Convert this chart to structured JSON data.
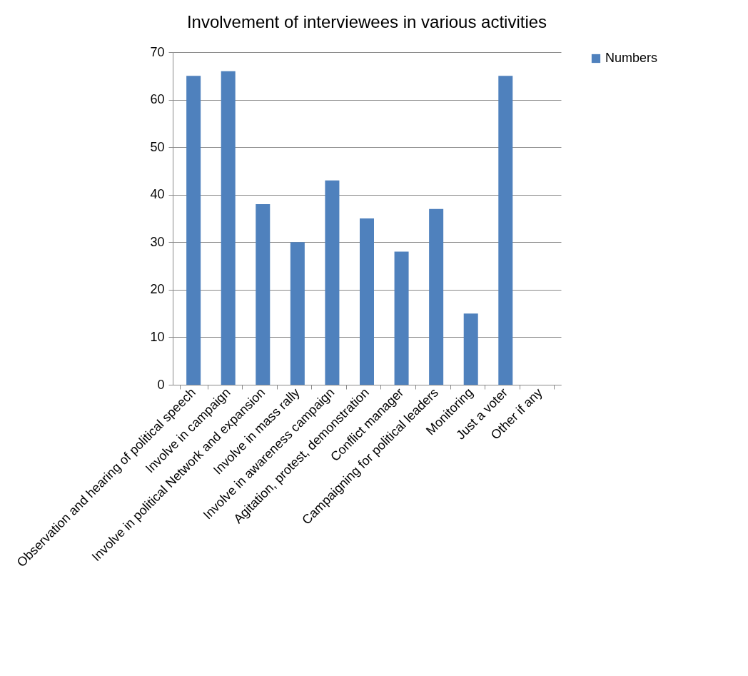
{
  "chart_data": {
    "type": "bar",
    "title": "Involvement of interviewees in various activities",
    "categories": [
      "Observation and hearing of political speech",
      "Involve in campaign",
      "Involve in political Network and expansion",
      "Involve in mass rally",
      "Involve in awareness campaign",
      "Agitation, protest, demonstration",
      "Conflict manager",
      "Campaigning for political leaders",
      "Monitoring",
      "Just a voter",
      "Other if any"
    ],
    "series": [
      {
        "name": "Numbers",
        "color": "#4f81bd",
        "values": [
          65,
          66,
          38,
          30,
          43,
          35,
          28,
          37,
          15,
          65,
          null
        ]
      }
    ],
    "ylim": [
      0,
      70
    ],
    "yticks": [
      0,
      10,
      20,
      30,
      40,
      50,
      60,
      70
    ],
    "grid": "y",
    "legend": "right"
  }
}
